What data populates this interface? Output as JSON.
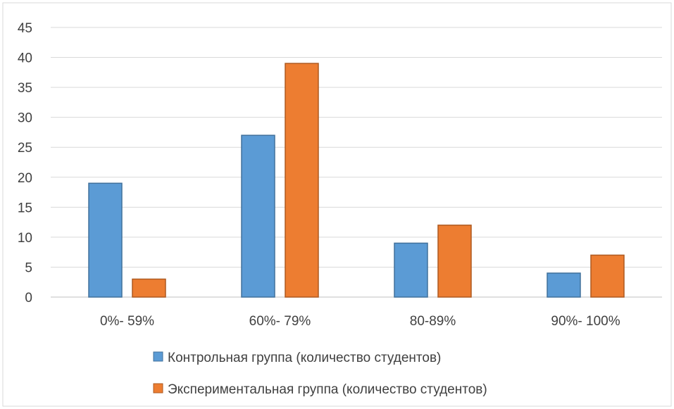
{
  "chart_data": {
    "type": "bar",
    "title": "",
    "xlabel": "",
    "ylabel": "",
    "categories": [
      "0%- 59%",
      "60%- 79%",
      "80-89%",
      "90%- 100%"
    ],
    "series": [
      {
        "name": "Контрольная группа (количество студентов)",
        "values": [
          19,
          27,
          9,
          4
        ],
        "color": "#5B9BD5",
        "border": "#41719C"
      },
      {
        "name": "Экспериментальная группа (количество студентов)",
        "values": [
          3,
          39,
          12,
          7
        ],
        "color": "#ED7D31",
        "border": "#AE5A21"
      }
    ],
    "ylim": [
      0,
      45
    ],
    "yticks": [
      0,
      5,
      10,
      15,
      20,
      25,
      30,
      35,
      40,
      45
    ],
    "grid": true,
    "legend_position": "bottom"
  }
}
